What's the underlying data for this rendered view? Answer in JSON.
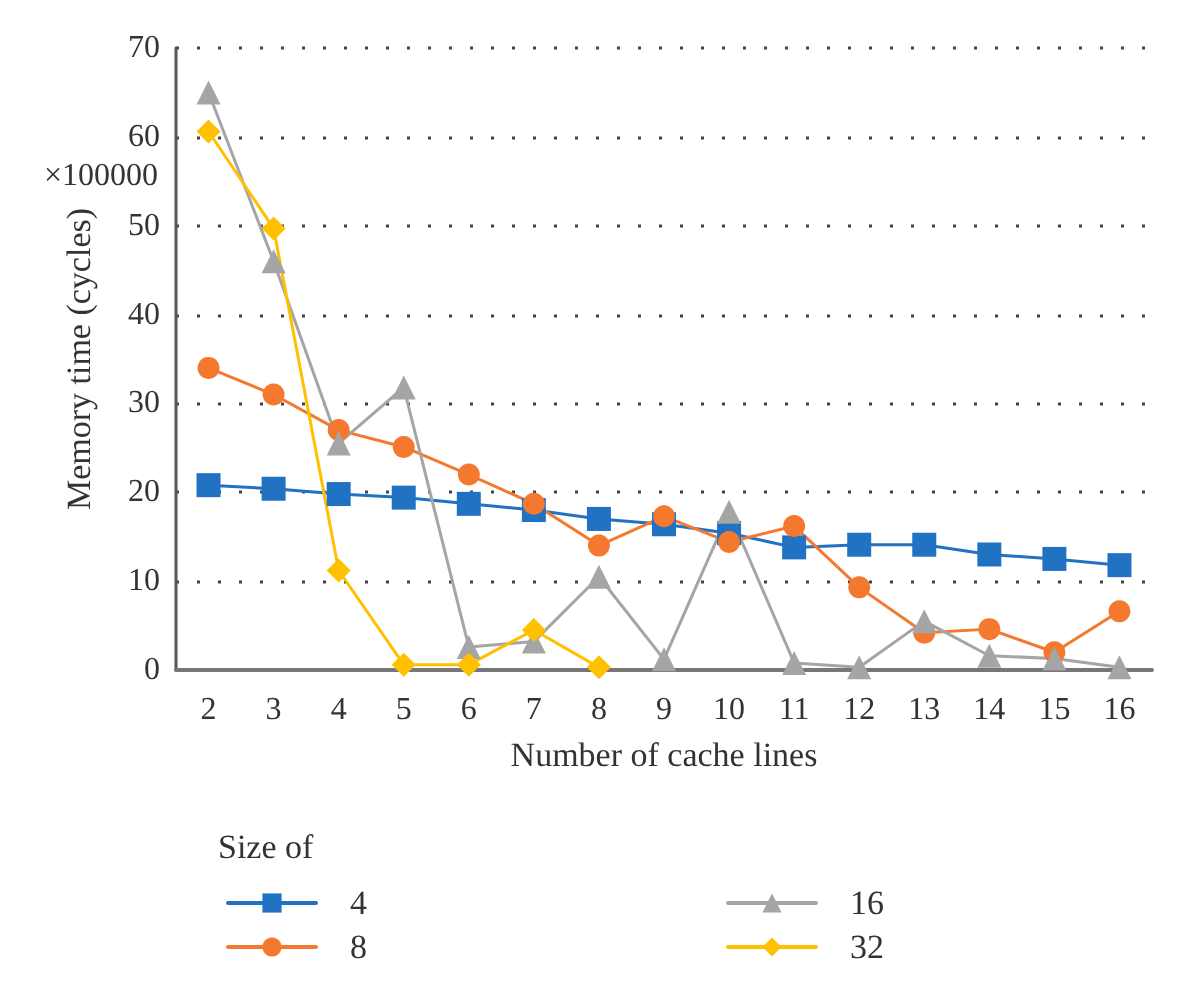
{
  "chart_data": {
    "type": "line",
    "xlabel": "Number of cache lines",
    "ylabel": "Memory time (cycles)",
    "legend_title": "Size of",
    "annotations": [
      "×100000"
    ],
    "categories": [
      "2",
      "3",
      "4",
      "5",
      "6",
      "7",
      "8",
      "9",
      "10",
      "11",
      "12",
      "13",
      "14",
      "15",
      "16"
    ],
    "series": [
      {
        "name": "4",
        "color": "#2272c3",
        "marker": "square",
        "values": [
          20.8,
          20.4,
          19.8,
          19.4,
          18.7,
          18.0,
          17.0,
          16.4,
          15.4,
          13.8,
          14.1,
          14.1,
          13.0,
          12.5,
          11.8
        ]
      },
      {
        "name": "8",
        "color": "#f4792f",
        "marker": "circle",
        "values": [
          34,
          31,
          27,
          25.1,
          22,
          18.7,
          14,
          17.3,
          14.4,
          16.2,
          9.3,
          4.2,
          4.6,
          2,
          6.6
        ]
      },
      {
        "name": "16",
        "color": "#a5a5a5",
        "marker": "triangle",
        "values": [
          65,
          46,
          25.5,
          31.8,
          2.6,
          3.2,
          10.5,
          1.2,
          17.8,
          0.8,
          0.3,
          5.5,
          1.6,
          1.3,
          0.3
        ]
      },
      {
        "name": "32",
        "color": "#ffc000",
        "marker": "diamond",
        "values": [
          60.6,
          49.7,
          11.2,
          0.6,
          0.6,
          4.5,
          0.3,
          null,
          null,
          null,
          null,
          null,
          null,
          null,
          null
        ]
      }
    ],
    "ylim": [
      0,
      70
    ],
    "yticks": [
      0,
      10,
      20,
      30,
      40,
      50,
      60,
      70
    ],
    "grid": "y",
    "legend": "bottom"
  }
}
